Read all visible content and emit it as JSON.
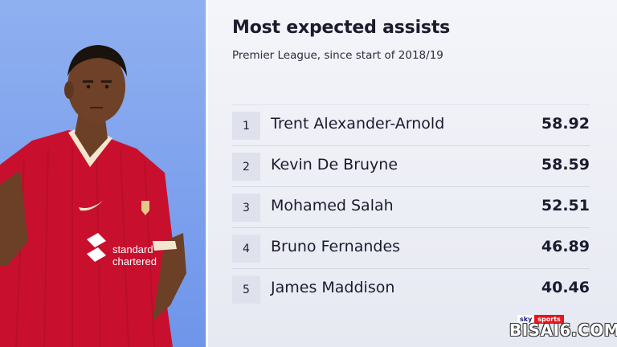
{
  "header": {
    "title": "Most expected assists",
    "subtitle": "Premier League, since start of 2018/19"
  },
  "rankings": [
    {
      "rank": "1",
      "name": "Trent Alexander-Arnold",
      "value": "58.92"
    },
    {
      "rank": "2",
      "name": "Kevin De Bruyne",
      "value": "58.59"
    },
    {
      "rank": "3",
      "name": "Mohamed Salah",
      "value": "52.51"
    },
    {
      "rank": "4",
      "name": "Bruno Fernandes",
      "value": "46.89"
    },
    {
      "rank": "5",
      "name": "James Maddison",
      "value": "40.46"
    }
  ],
  "player_photo": {
    "shirt_sponsor": "standard chartered",
    "shirt_color": "#c8102e"
  },
  "branding": {
    "broadcaster_left": "sky",
    "broadcaster_right": "sports",
    "watermark": "BISAI6.COM"
  }
}
